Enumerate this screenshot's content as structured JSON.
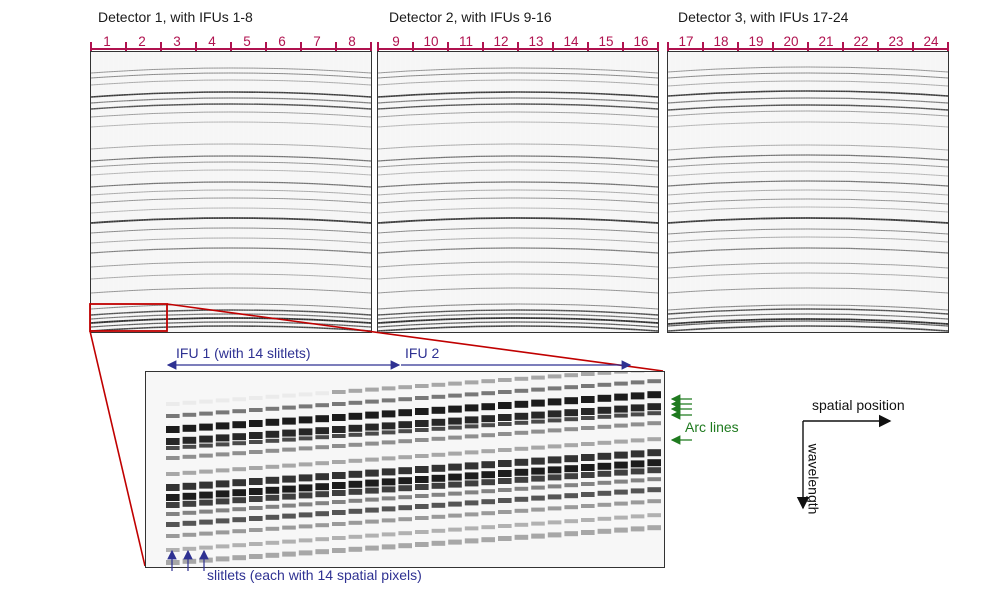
{
  "detectors": [
    {
      "title": "Detector 1, with IFUs 1-8",
      "ifus": [
        "1",
        "2",
        "3",
        "4",
        "5",
        "6",
        "7",
        "8"
      ]
    },
    {
      "title": "Detector 2, with IFUs 9-16",
      "ifus": [
        "9",
        "10",
        "11",
        "12",
        "13",
        "14",
        "15",
        "16"
      ]
    },
    {
      "title": "Detector 3, with IFUs 17-24",
      "ifus": [
        "17",
        "18",
        "19",
        "20",
        "21",
        "22",
        "23",
        "24"
      ]
    }
  ],
  "zoom": {
    "ifu1_label": "IFU 1 (with 14 slitlets)",
    "ifu2_label": "IFU 2",
    "arc_lines_label": "Arc lines",
    "slitlets_label": "slitlets (each with 14 spatial pixels)"
  },
  "axes": {
    "spatial_label": "spatial position",
    "wavelength_label": "wavelength"
  },
  "colors": {
    "ifu_number": "#b0124f",
    "annotation_blue": "#2e3192",
    "annotation_green": "#1f7a1f",
    "zoom_box": "#c00000"
  }
}
